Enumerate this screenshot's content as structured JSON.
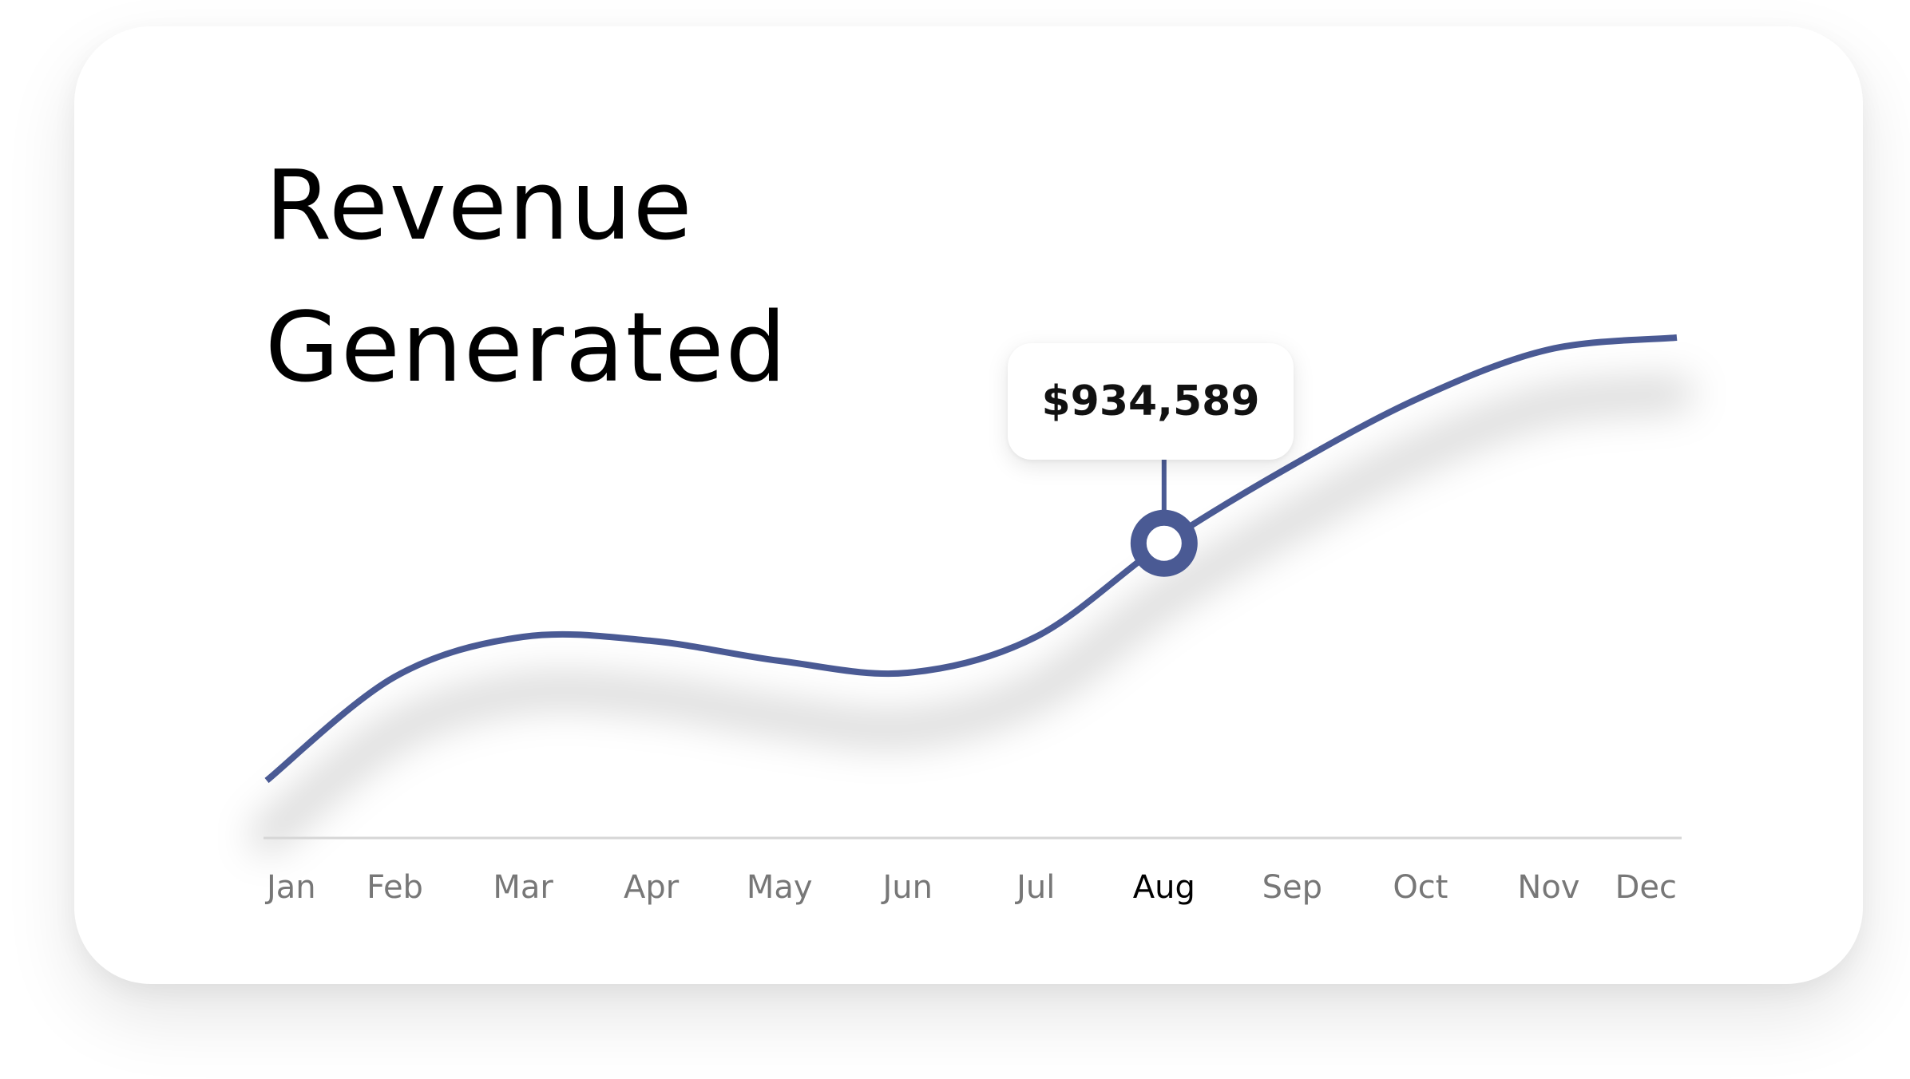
{
  "title_line1": "Revenue",
  "title_line2": "Generated",
  "tooltip": {
    "value_label": "$934,589",
    "month": "Aug"
  },
  "colors": {
    "line": "#4A5A94",
    "axis": "#D6D6D6",
    "tick": "#777777",
    "tick_active": "#000000",
    "marker_fill": "#FFFFFF"
  },
  "chart_data": {
    "type": "line",
    "categories": [
      "Jan",
      "Feb",
      "Mar",
      "Apr",
      "May",
      "Jun",
      "Jul",
      "Aug",
      "Sep",
      "Oct",
      "Nov",
      "Dec"
    ],
    "series": [
      {
        "values": [
          340000,
          600000,
          700000,
          690000,
          640000,
          610000,
          700000,
          934589,
          1130000,
          1300000,
          1420000,
          1450000
        ]
      }
    ],
    "highlight_index": 7,
    "ylim": [
      0,
      1600000
    ],
    "grid": false,
    "show_y_axis": false
  }
}
